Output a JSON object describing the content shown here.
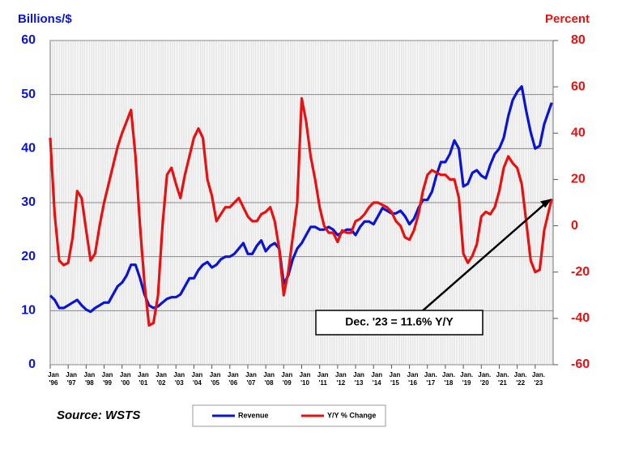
{
  "chart_data": {
    "type": "line",
    "y_label": "Billions/$",
    "y2_label": "Percent",
    "source": "Source: WSTS",
    "annotation": "Dec. '23 = 11.6% Y/Y",
    "xlim": [
      1996,
      2024
    ],
    "xticks": [
      {
        "value": 1996,
        "label": "Jan '96"
      },
      {
        "value": 1997,
        "label": "Jan '97"
      },
      {
        "value": 1998,
        "label": "Jan '98"
      },
      {
        "value": 1999,
        "label": "Jan '99"
      },
      {
        "value": 2000,
        "label": "Jan '00"
      },
      {
        "value": 2001,
        "label": "Jan '01"
      },
      {
        "value": 2002,
        "label": "Jan '02"
      },
      {
        "value": 2003,
        "label": "Jan '03"
      },
      {
        "value": 2004,
        "label": "Jan '04"
      },
      {
        "value": 2005,
        "label": "Jan '05"
      },
      {
        "value": 2006,
        "label": "Jan '06"
      },
      {
        "value": 2007,
        "label": "Jan '07"
      },
      {
        "value": 2008,
        "label": "Jan '08"
      },
      {
        "value": 2009,
        "label": "Jan '09"
      },
      {
        "value": 2010,
        "label": "Jan '10"
      },
      {
        "value": 2011,
        "label": "Jan '11"
      },
      {
        "value": 2012,
        "label": "Jan '12"
      },
      {
        "value": 2013,
        "label": "Jan '13"
      },
      {
        "value": 2014,
        "label": "Jan '14"
      },
      {
        "value": 2015,
        "label": "Jan '15"
      },
      {
        "value": 2016,
        "label": "Jan '16"
      },
      {
        "value": 2017,
        "label": "Jan. '17"
      },
      {
        "value": 2018,
        "label": "Jan. '18"
      },
      {
        "value": 2019,
        "label": "Jan. '19"
      },
      {
        "value": 2020,
        "label": "Jan. '20"
      },
      {
        "value": 2021,
        "label": "Jan. '21"
      },
      {
        "value": 2022,
        "label": "Jan. '22"
      },
      {
        "value": 2023,
        "label": "Jan. '23"
      }
    ],
    "ylim": [
      0,
      60
    ],
    "yticks": [
      0,
      10,
      20,
      30,
      40,
      50,
      60
    ],
    "y2lim": [
      -60,
      80
    ],
    "y2ticks": [
      -60,
      -40,
      -20,
      0,
      20,
      40,
      60,
      80
    ],
    "grid": true,
    "x": [
      1996,
      1996.25,
      1996.5,
      1996.75,
      1997,
      1997.25,
      1997.5,
      1997.75,
      1998,
      1998.25,
      1998.5,
      1998.75,
      1999,
      1999.25,
      1999.5,
      1999.75,
      2000,
      2000.25,
      2000.5,
      2000.75,
      2001,
      2001.25,
      2001.5,
      2001.75,
      2002,
      2002.25,
      2002.5,
      2002.75,
      2003,
      2003.25,
      2003.5,
      2003.75,
      2004,
      2004.25,
      2004.5,
      2004.75,
      2005,
      2005.25,
      2005.5,
      2005.75,
      2006,
      2006.25,
      2006.5,
      2006.75,
      2007,
      2007.25,
      2007.5,
      2007.75,
      2008,
      2008.25,
      2008.5,
      2008.75,
      2009,
      2009.25,
      2009.5,
      2009.75,
      2010,
      2010.25,
      2010.5,
      2010.75,
      2011,
      2011.25,
      2011.5,
      2011.75,
      2012,
      2012.25,
      2012.5,
      2012.75,
      2013,
      2013.25,
      2013.5,
      2013.75,
      2014,
      2014.25,
      2014.5,
      2014.75,
      2015,
      2015.25,
      2015.5,
      2015.75,
      2016,
      2016.25,
      2016.5,
      2016.75,
      2017,
      2017.25,
      2017.5,
      2017.75,
      2018,
      2018.25,
      2018.5,
      2018.75,
      2019,
      2019.25,
      2019.5,
      2019.75,
      2020,
      2020.25,
      2020.5,
      2020.75,
      2021,
      2021.25,
      2021.5,
      2021.75,
      2022,
      2022.25,
      2022.5,
      2022.75,
      2023,
      2023.25,
      2023.5,
      2023.917
    ],
    "series": [
      {
        "name": "Revenue",
        "color": "#0a14d2",
        "values": [
          12.8,
          12,
          10.5,
          10.5,
          11,
          11.5,
          12,
          11,
          10.2,
          9.8,
          10.5,
          11,
          11.5,
          11.5,
          13,
          14.5,
          15.2,
          16.5,
          18.5,
          18.5,
          16,
          13,
          11,
          10.5,
          10.8,
          11.5,
          12.2,
          12.5,
          12.5,
          13,
          14.5,
          16,
          16,
          17.5,
          18.5,
          19,
          18,
          18.5,
          19.5,
          20,
          20,
          20.5,
          21.5,
          22.5,
          20.5,
          20.5,
          22,
          23,
          21,
          22,
          22.5,
          21.5,
          15,
          16.5,
          19.5,
          21.5,
          22.5,
          24,
          25.5,
          25.5,
          25,
          25,
          25.5,
          25,
          24,
          24.5,
          25,
          25,
          24,
          25.5,
          26.5,
          26.5,
          26,
          27.5,
          29,
          28.5,
          28,
          28,
          28.5,
          27.5,
          26,
          27,
          29,
          30.5,
          30.5,
          32,
          35,
          37.5,
          37.5,
          39,
          41.5,
          40,
          33,
          33.5,
          35.5,
          36,
          35,
          34.5,
          37,
          39,
          40,
          42,
          46,
          49,
          50.5,
          51.5,
          47,
          43,
          40,
          40.5,
          44.5,
          48.5
        ]
      },
      {
        "name": "Y/Y % Change",
        "color": "#e81010",
        "axis": "y2",
        "values": [
          38,
          5,
          -15,
          -17,
          -16,
          -5,
          15,
          12,
          -2,
          -15,
          -12,
          0,
          10,
          18,
          26,
          34,
          40,
          45,
          50,
          30,
          0,
          -25,
          -43,
          -42,
          -30,
          0,
          22,
          25,
          18,
          12,
          22,
          30,
          38,
          42,
          38,
          20,
          13,
          2,
          5,
          8,
          8,
          10,
          12,
          8,
          4,
          2,
          2,
          5,
          6,
          8,
          2,
          -10,
          -30,
          -20,
          -5,
          10,
          55,
          45,
          30,
          20,
          8,
          0,
          -3,
          -3,
          -7,
          -2,
          -3,
          -3,
          2,
          3,
          5,
          8,
          10,
          10,
          9,
          8,
          6,
          2,
          0,
          -5,
          -6,
          -2,
          5,
          15,
          22,
          24,
          23,
          22,
          22,
          20,
          20,
          12,
          -12,
          -16,
          -13,
          -8,
          4,
          6,
          5,
          8,
          15,
          25,
          30,
          27,
          25,
          18,
          2,
          -15,
          -20,
          -19,
          -2,
          11.6
        ]
      }
    ]
  }
}
